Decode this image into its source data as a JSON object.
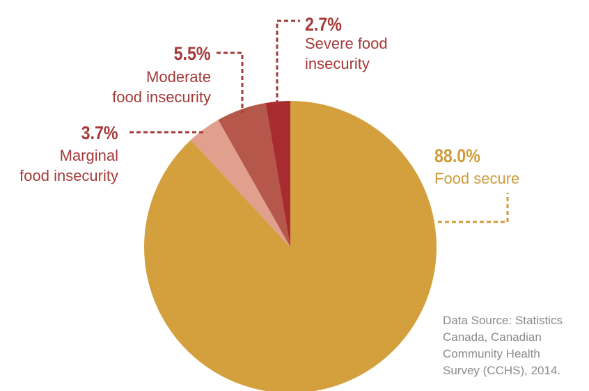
{
  "chart_data": {
    "type": "pie",
    "slices": [
      {
        "label": "Food secure",
        "value": 88.0,
        "value_label": "88.0%",
        "label_lines": [
          "Food secure"
        ],
        "color": "#d4a03e"
      },
      {
        "label": "Marginal food insecurity",
        "value": 3.7,
        "value_label": "3.7%",
        "label_lines": [
          "Marginal",
          "food insecurity"
        ],
        "color": "#e0a08d"
      },
      {
        "label": "Moderate food insecurity",
        "value": 5.5,
        "value_label": "5.5%",
        "label_lines": [
          "Moderate",
          "food insecurity"
        ],
        "color": "#b5574a"
      },
      {
        "label": "Severe food insecurity",
        "value": 2.7,
        "value_label": "2.7%",
        "label_lines": [
          "Severe food",
          "insecurity"
        ],
        "color": "#a82b30"
      }
    ],
    "start_angle": "12 o'clock",
    "direction": "clockwise from severe to food secure",
    "source_note": [
      "Data Source: Statistics",
      "Canada, Canadian",
      "Community Health",
      "Survey (CCHS), 2014."
    ],
    "colors": {
      "label_red": "#a33a38",
      "label_gold": "#d09b3b",
      "source_gray": "#8b8b8b"
    }
  }
}
